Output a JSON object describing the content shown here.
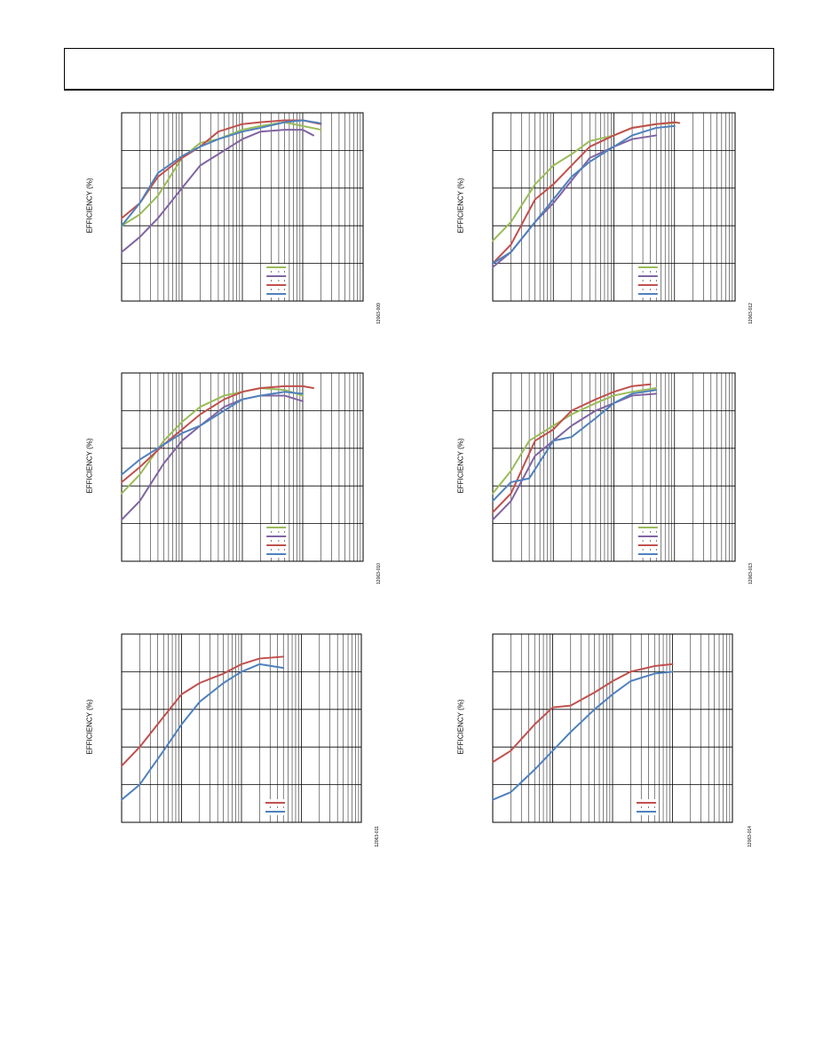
{
  "chart_data": [
    {
      "id": "c1",
      "type": "line",
      "ylabel": "EFFICIENCY (%)",
      "figure_id": "12063-009",
      "x_scale": "log",
      "xlim": [
        0.0001,
        1
      ],
      "ylim": [
        50,
        100
      ],
      "grid": true,
      "legend_position": "bottom-right",
      "series": [
        {
          "color": "#9bbb59",
          "points": [
            [
              0.0001,
              70
            ],
            [
              0.0002,
              73
            ],
            [
              0.0004,
              78
            ],
            [
              0.001,
              88
            ],
            [
              0.002,
              92
            ],
            [
              0.004,
              93
            ],
            [
              0.01,
              95.5
            ],
            [
              0.02,
              96.5
            ],
            [
              0.05,
              97.5
            ],
            [
              0.1,
              96.5
            ],
            [
              0.2,
              95.5
            ]
          ]
        },
        {
          "color": "#8064a2",
          "points": [
            [
              0.0001,
              63
            ],
            [
              0.0002,
              67
            ],
            [
              0.0004,
              72
            ],
            [
              0.001,
              80
            ],
            [
              0.002,
              86
            ],
            [
              0.004,
              89
            ],
            [
              0.01,
              93
            ],
            [
              0.02,
              95
            ],
            [
              0.05,
              95.5
            ],
            [
              0.1,
              95.5
            ],
            [
              0.15,
              94
            ]
          ]
        },
        {
          "color": "#c0504d",
          "points": [
            [
              0.0001,
              72
            ],
            [
              0.0002,
              76
            ],
            [
              0.0004,
              83
            ],
            [
              0.001,
              88
            ],
            [
              0.002,
              91
            ],
            [
              0.004,
              95
            ],
            [
              0.01,
              97
            ],
            [
              0.02,
              97.5
            ],
            [
              0.05,
              98
            ],
            [
              0.1,
              98
            ],
            [
              0.2,
              97
            ]
          ]
        },
        {
          "color": "#4f81bd",
          "points": [
            [
              0.0001,
              70
            ],
            [
              0.0002,
              76
            ],
            [
              0.0004,
              84
            ],
            [
              0.001,
              88.5
            ],
            [
              0.002,
              91
            ],
            [
              0.004,
              93
            ],
            [
              0.01,
              95
            ],
            [
              0.02,
              96
            ],
            [
              0.05,
              97.5
            ],
            [
              0.1,
              98
            ],
            [
              0.2,
              97.2
            ]
          ]
        }
      ]
    },
    {
      "id": "c2",
      "type": "line",
      "ylabel": "EFFICIENCY (%)",
      "figure_id": "12063-012",
      "x_scale": "log",
      "xlim": [
        0.0001,
        1
      ],
      "ylim": [
        50,
        100
      ],
      "grid": true,
      "legend_position": "bottom-right",
      "series": [
        {
          "color": "#9bbb59",
          "points": [
            [
              0.0001,
              66
            ],
            [
              0.0002,
              71
            ],
            [
              0.0005,
              81
            ],
            [
              0.001,
              86
            ],
            [
              0.002,
              89
            ],
            [
              0.004,
              92.5
            ],
            [
              0.01,
              94
            ],
            [
              0.02,
              96
            ],
            [
              0.05,
              97
            ],
            [
              0.1,
              97.3
            ]
          ]
        },
        {
          "color": "#8064a2",
          "points": [
            [
              0.0001,
              59
            ],
            [
              0.0002,
              63
            ],
            [
              0.0005,
              71
            ],
            [
              0.001,
              76
            ],
            [
              0.002,
              82
            ],
            [
              0.004,
              88
            ],
            [
              0.01,
              91
            ],
            [
              0.02,
              93
            ],
            [
              0.05,
              94
            ]
          ]
        },
        {
          "color": "#c0504d",
          "points": [
            [
              0.0001,
              60
            ],
            [
              0.0002,
              65
            ],
            [
              0.0005,
              77
            ],
            [
              0.001,
              81
            ],
            [
              0.002,
              86
            ],
            [
              0.004,
              91
            ],
            [
              0.01,
              94
            ],
            [
              0.02,
              96
            ],
            [
              0.05,
              97
            ],
            [
              0.1,
              97.5
            ],
            [
              0.12,
              97.3
            ]
          ]
        },
        {
          "color": "#4f81bd",
          "points": [
            [
              0.0001,
              60
            ],
            [
              0.0002,
              63
            ],
            [
              0.0005,
              71
            ],
            [
              0.001,
              77
            ],
            [
              0.002,
              83
            ],
            [
              0.004,
              87
            ],
            [
              0.01,
              91
            ],
            [
              0.02,
              94
            ],
            [
              0.05,
              96
            ],
            [
              0.1,
              96.5
            ]
          ]
        }
      ]
    },
    {
      "id": "c3",
      "type": "line",
      "ylabel": "EFFICIENCY (%)",
      "figure_id": "12063-010",
      "x_scale": "log",
      "xlim": [
        0.0001,
        1
      ],
      "ylim": [
        50,
        100
      ],
      "grid": true,
      "legend_position": "bottom-right",
      "series": [
        {
          "color": "#9bbb59",
          "points": [
            [
              0.0001,
              68
            ],
            [
              0.0002,
              73
            ],
            [
              0.0005,
              82
            ],
            [
              0.001,
              87
            ],
            [
              0.002,
              91
            ],
            [
              0.005,
              94
            ],
            [
              0.01,
              95
            ],
            [
              0.02,
              96
            ],
            [
              0.05,
              95.5
            ],
            [
              0.1,
              94
            ]
          ]
        },
        {
          "color": "#8064a2",
          "points": [
            [
              0.0001,
              61
            ],
            [
              0.0002,
              66
            ],
            [
              0.0005,
              76
            ],
            [
              0.001,
              82
            ],
            [
              0.002,
              86
            ],
            [
              0.005,
              91
            ],
            [
              0.01,
              93
            ],
            [
              0.02,
              94
            ],
            [
              0.05,
              94
            ],
            [
              0.1,
              92.5
            ]
          ]
        },
        {
          "color": "#c0504d",
          "points": [
            [
              0.0001,
              71
            ],
            [
              0.0002,
              75
            ],
            [
              0.0005,
              81
            ],
            [
              0.001,
              85
            ],
            [
              0.002,
              89
            ],
            [
              0.005,
              93
            ],
            [
              0.01,
              95
            ],
            [
              0.02,
              96
            ],
            [
              0.05,
              96.5
            ],
            [
              0.1,
              96.5
            ],
            [
              0.15,
              96
            ]
          ]
        },
        {
          "color": "#4f81bd",
          "points": [
            [
              0.0001,
              73
            ],
            [
              0.0002,
              77
            ],
            [
              0.0005,
              81
            ],
            [
              0.001,
              84
            ],
            [
              0.002,
              86
            ],
            [
              0.005,
              90
            ],
            [
              0.01,
              93
            ],
            [
              0.02,
              94
            ],
            [
              0.05,
              95
            ],
            [
              0.1,
              94.5
            ]
          ]
        }
      ]
    },
    {
      "id": "c4",
      "type": "line",
      "ylabel": "EFFICIENCY (%)",
      "figure_id": "12063-013",
      "x_scale": "log",
      "xlim": [
        0.0001,
        1
      ],
      "ylim": [
        50,
        100
      ],
      "grid": true,
      "legend_position": "bottom-right",
      "series": [
        {
          "color": "#9bbb59",
          "points": [
            [
              0.0001,
              68
            ],
            [
              0.0002,
              74
            ],
            [
              0.0004,
              82
            ],
            [
              0.001,
              86
            ],
            [
              0.002,
              89
            ],
            [
              0.005,
              92
            ],
            [
              0.01,
              94
            ],
            [
              0.02,
              95
            ],
            [
              0.05,
              96
            ]
          ]
        },
        {
          "color": "#8064a2",
          "points": [
            [
              0.0001,
              61
            ],
            [
              0.0002,
              66
            ],
            [
              0.0005,
              78
            ],
            [
              0.001,
              82
            ],
            [
              0.002,
              86
            ],
            [
              0.005,
              90
            ],
            [
              0.01,
              92
            ],
            [
              0.02,
              94
            ],
            [
              0.05,
              94.5
            ]
          ]
        },
        {
          "color": "#c0504d",
          "points": [
            [
              0.0001,
              63
            ],
            [
              0.0002,
              68
            ],
            [
              0.0005,
              82
            ],
            [
              0.001,
              85
            ],
            [
              0.002,
              90
            ],
            [
              0.005,
              93
            ],
            [
              0.01,
              95
            ],
            [
              0.02,
              96.5
            ],
            [
              0.04,
              97
            ]
          ]
        },
        {
          "color": "#4f81bd",
          "points": [
            [
              0.0001,
              66
            ],
            [
              0.0002,
              71
            ],
            [
              0.0004,
              72
            ],
            [
              0.001,
              82
            ],
            [
              0.002,
              83
            ],
            [
              0.005,
              88
            ],
            [
              0.01,
              92
            ],
            [
              0.02,
              94.5
            ],
            [
              0.05,
              95.5
            ]
          ]
        }
      ]
    },
    {
      "id": "c5",
      "type": "line",
      "ylabel": "EFFICIENCY (%)",
      "figure_id": "12063-011",
      "x_scale": "log",
      "xlim": [
        0.0001,
        1
      ],
      "ylim": [
        50,
        100
      ],
      "grid": true,
      "legend_position": "bottom-right",
      "series": [
        {
          "color": "#c0504d",
          "points": [
            [
              0.0001,
              65
            ],
            [
              0.0002,
              70
            ],
            [
              0.0005,
              78
            ],
            [
              0.001,
              84
            ],
            [
              0.002,
              87
            ],
            [
              0.005,
              89.5
            ],
            [
              0.01,
              92
            ],
            [
              0.02,
              93.5
            ],
            [
              0.05,
              94
            ]
          ]
        },
        {
          "color": "#4f81bd",
          "points": [
            [
              0.0001,
              56
            ],
            [
              0.0002,
              60
            ],
            [
              0.0005,
              69
            ],
            [
              0.001,
              76
            ],
            [
              0.002,
              82
            ],
            [
              0.005,
              87
            ],
            [
              0.01,
              90
            ],
            [
              0.02,
              92
            ],
            [
              0.05,
              91
            ]
          ]
        }
      ]
    },
    {
      "id": "c6",
      "type": "line",
      "ylabel": "EFFICIENCY (%)",
      "figure_id": "12063-014",
      "x_scale": "log",
      "xlim": [
        0.0001,
        1
      ],
      "ylim": [
        50,
        100
      ],
      "grid": true,
      "legend_position": "bottom-right",
      "series": [
        {
          "color": "#c0504d",
          "points": [
            [
              0.0001,
              66
            ],
            [
              0.0002,
              69
            ],
            [
              0.0005,
              76
            ],
            [
              0.001,
              80.5
            ],
            [
              0.002,
              81
            ],
            [
              0.005,
              84.5
            ],
            [
              0.01,
              87.5
            ],
            [
              0.02,
              90
            ],
            [
              0.05,
              91.5
            ],
            [
              0.1,
              92
            ]
          ]
        },
        {
          "color": "#4f81bd",
          "points": [
            [
              0.0001,
              56
            ],
            [
              0.0002,
              58
            ],
            [
              0.0005,
              64
            ],
            [
              0.001,
              69
            ],
            [
              0.002,
              74
            ],
            [
              0.005,
              80
            ],
            [
              0.01,
              84
            ],
            [
              0.02,
              87.5
            ],
            [
              0.05,
              89.5
            ],
            [
              0.1,
              90
            ]
          ]
        }
      ]
    }
  ]
}
